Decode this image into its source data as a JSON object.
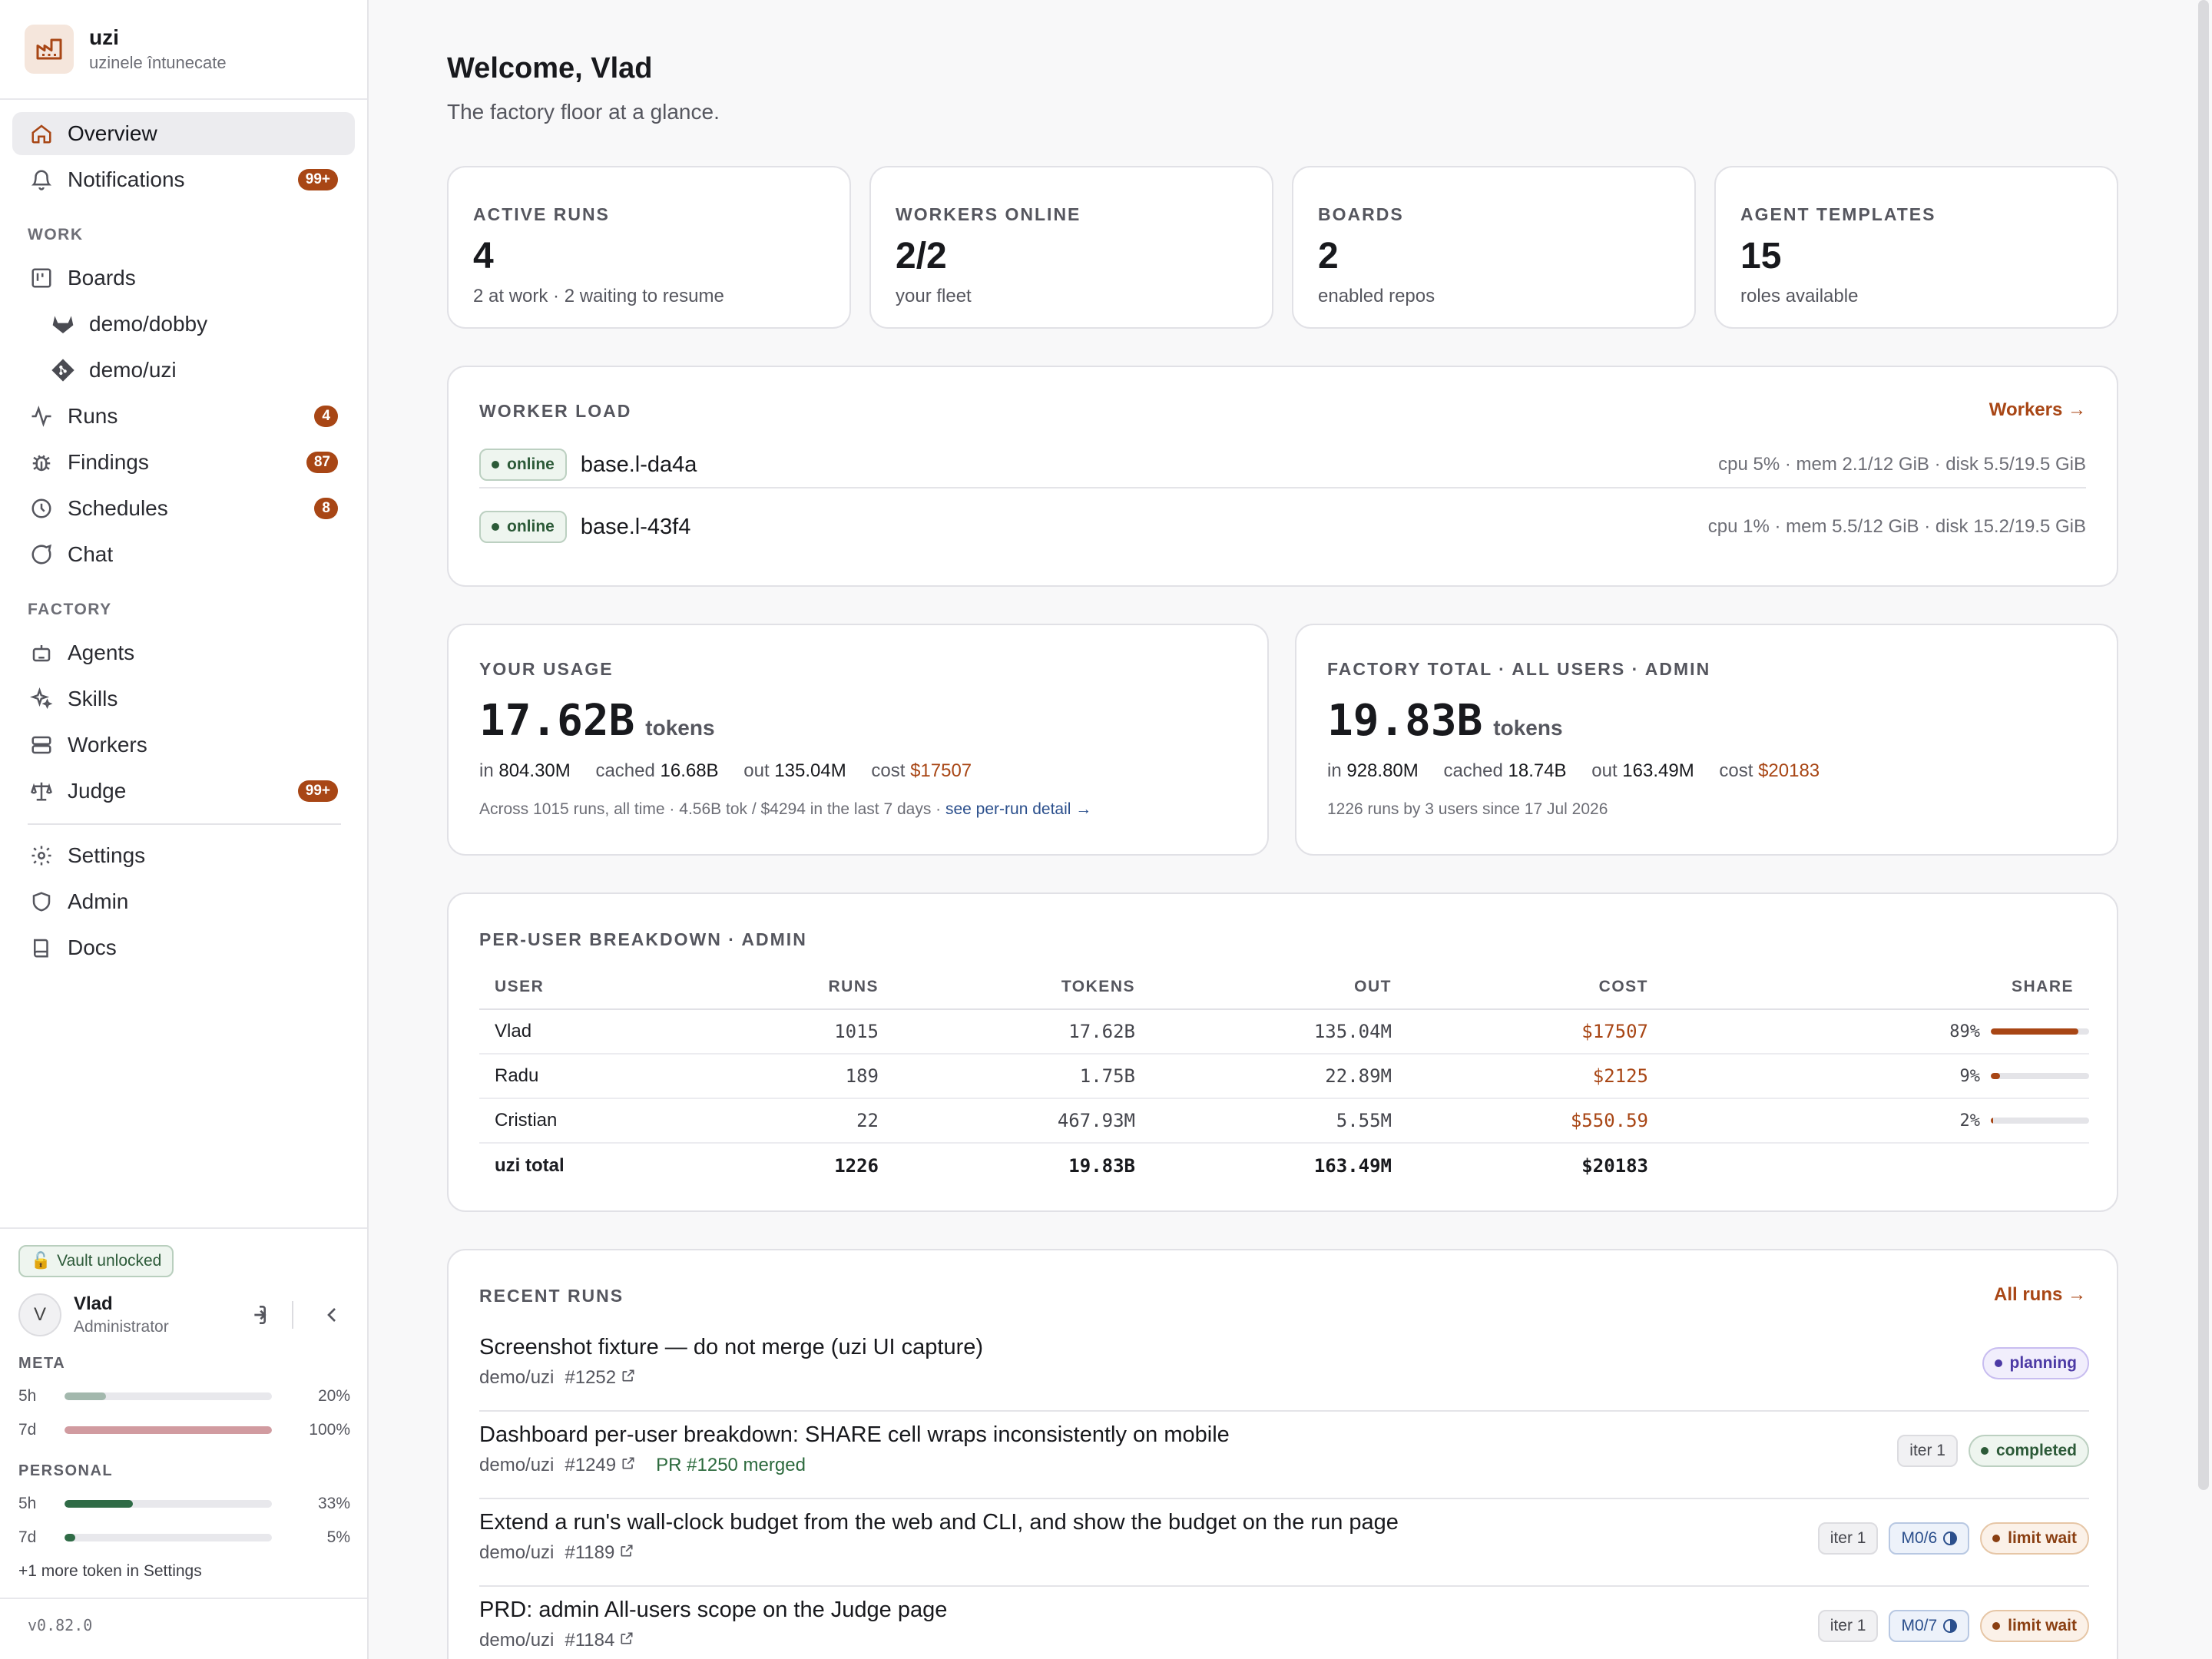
{
  "app": {
    "name": "uzi",
    "subtitle": "uzinele întunecate",
    "version": "v0.82.0"
  },
  "nav": {
    "overview": "Overview",
    "notifications": {
      "label": "Notifications",
      "badge": "99+"
    },
    "work_section": "WORK",
    "boards": "Boards",
    "board_items": [
      "demo/dobby",
      "demo/uzi"
    ],
    "runs": {
      "label": "Runs",
      "badge": "4"
    },
    "findings": {
      "label": "Findings",
      "badge": "87"
    },
    "schedules": {
      "label": "Schedules",
      "badge": "8"
    },
    "chat": "Chat",
    "factory_section": "FACTORY",
    "agents": "Agents",
    "skills": "Skills",
    "workers": "Workers",
    "judge": {
      "label": "Judge",
      "badge": "99+"
    },
    "settings": "Settings",
    "admin": "Admin",
    "docs": "Docs"
  },
  "vault": "Vault unlocked",
  "user": {
    "initial": "V",
    "name": "Vlad",
    "role": "Administrator"
  },
  "quotas": {
    "meta_label": "META",
    "meta": [
      {
        "name": "5h",
        "pct": "20%",
        "fraction": 0.2,
        "color": "#a3b8ad"
      },
      {
        "name": "7d",
        "pct": "100%",
        "fraction": 1.0,
        "color": "#d19ba0"
      }
    ],
    "personal_label": "PERSONAL",
    "personal": [
      {
        "name": "5h",
        "pct": "33%",
        "fraction": 0.33,
        "color": "#2f6b46"
      },
      {
        "name": "7d",
        "pct": "5%",
        "fraction": 0.05,
        "color": "#2f6b46"
      }
    ],
    "more": "+1 more token in Settings"
  },
  "header": {
    "title": "Welcome, Vlad",
    "subtitle": "The factory floor at a glance."
  },
  "stats": [
    {
      "label": "ACTIVE RUNS",
      "value": "4",
      "sub": "2 at work · 2 waiting to resume"
    },
    {
      "label": "WORKERS ONLINE",
      "value": "2/2",
      "sub": "your fleet"
    },
    {
      "label": "BOARDS",
      "value": "2",
      "sub": "enabled repos"
    },
    {
      "label": "AGENT TEMPLATES",
      "value": "15",
      "sub": "roles available"
    }
  ],
  "worker_load": {
    "title": "WORKER LOAD",
    "link": "Workers →",
    "workers": [
      {
        "status": "online",
        "name": "base.l-da4a",
        "stats": "cpu 5% · mem 2.1/12 GiB · disk 5.5/19.5 GiB"
      },
      {
        "status": "online",
        "name": "base.l-43f4",
        "stats": "cpu 1% · mem 5.5/12 GiB · disk 15.2/19.5 GiB"
      }
    ]
  },
  "your_usage": {
    "title": "YOUR USAGE",
    "tokens": "17.62B",
    "unit": "tokens",
    "in_label": "in",
    "in": "804.30M",
    "cached_label": "cached",
    "cached": "16.68B",
    "out_label": "out",
    "out": "135.04M",
    "cost_label": "cost",
    "cost": "$17507",
    "note": "Across 1015 runs, all time · 4.56B tok / $4294 in the last 7 days · ",
    "note_link": "see per-run detail →"
  },
  "factory_total": {
    "title": "FACTORY TOTAL · ALL USERS · ADMIN",
    "tokens": "19.83B",
    "unit": "tokens",
    "in_label": "in",
    "in": "928.80M",
    "cached_label": "cached",
    "cached": "18.74B",
    "out_label": "out",
    "out": "163.49M",
    "cost_label": "cost",
    "cost": "$20183",
    "note": "1226 runs by 3 users since 17 Jul 2026"
  },
  "breakdown": {
    "title": "PER-USER BREAKDOWN · ADMIN",
    "columns": [
      "USER",
      "RUNS",
      "TOKENS",
      "OUT",
      "COST",
      "SHARE"
    ],
    "rows": [
      {
        "user": "Vlad",
        "runs": "1015",
        "tokens": "17.62B",
        "out": "135.04M",
        "cost": "$17507",
        "share": "89%",
        "share_value": 0.89
      },
      {
        "user": "Radu",
        "runs": "189",
        "tokens": "1.75B",
        "out": "22.89M",
        "cost": "$2125",
        "share": "9%",
        "share_value": 0.09
      },
      {
        "user": "Cristian",
        "runs": "22",
        "tokens": "467.93M",
        "out": "5.55M",
        "cost": "$550.59",
        "share": "2%",
        "share_value": 0.02
      }
    ],
    "total": {
      "user": "uzi total",
      "runs": "1226",
      "tokens": "19.83B",
      "out": "163.49M",
      "cost": "$20183"
    }
  },
  "recent_runs": {
    "title": "RECENT RUNS",
    "link": "All runs →",
    "runs": [
      {
        "title": "Screenshot fixture — do not merge (uzi UI capture)",
        "repo": "demo/uzi",
        "number": "#1252",
        "pr": "",
        "iter": "",
        "m": "",
        "status": "planning"
      },
      {
        "title": "Dashboard per-user breakdown: SHARE cell wraps inconsistently on mobile",
        "repo": "demo/uzi",
        "number": "#1249",
        "pr": "PR #1250 merged",
        "iter": "iter 1",
        "m": "",
        "status": "completed"
      },
      {
        "title": "Extend a run's wall-clock budget from the web and CLI, and show the budget on the run page",
        "repo": "demo/uzi",
        "number": "#1189",
        "pr": "",
        "iter": "iter 1",
        "m": "M0/6",
        "status": "limit wait"
      },
      {
        "title": "PRD: admin All-users scope on the Judge page",
        "repo": "demo/uzi",
        "number": "#1184",
        "pr": "",
        "iter": "iter 1",
        "m": "M0/7",
        "status": "limit wait"
      }
    ]
  },
  "colors": {
    "accent": "#a84615",
    "online": "#2c5a38"
  }
}
